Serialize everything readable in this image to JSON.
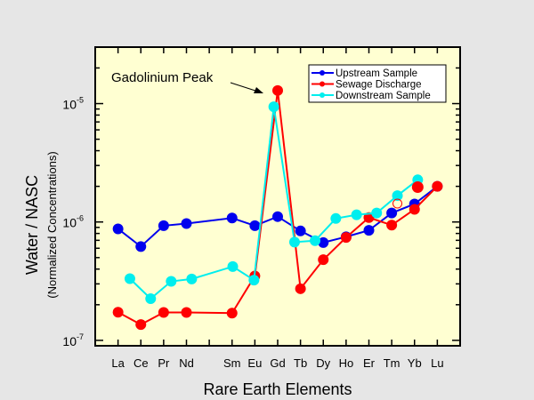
{
  "chart_data": {
    "type": "line",
    "xlabel": "Rare Earth Elements",
    "ylabel": "Water / NASC",
    "ylabel_sub": "(Normalized Concentrations)",
    "yscale": "log",
    "ylim": [
      9e-08,
      3e-05
    ],
    "xlim": [
      0,
      16
    ],
    "grid": false,
    "legend_placement": "top-right",
    "categories": [
      {
        "label": "La",
        "x": 1
      },
      {
        "label": "Ce",
        "x": 2
      },
      {
        "label": "Pr",
        "x": 3
      },
      {
        "label": "Nd",
        "x": 4
      },
      {
        "label": "",
        "x": 5
      },
      {
        "label": "Sm",
        "x": 6
      },
      {
        "label": "Eu",
        "x": 7
      },
      {
        "label": "Gd",
        "x": 8
      },
      {
        "label": "Tb",
        "x": 9
      },
      {
        "label": "Dy",
        "x": 10
      },
      {
        "label": "Ho",
        "x": 11
      },
      {
        "label": "Er",
        "x": 12
      },
      {
        "label": "Tm",
        "x": 13
      },
      {
        "label": "Yb",
        "x": 14
      },
      {
        "label": "Lu",
        "x": 15
      }
    ],
    "yticks": [
      {
        "value": 1e-07,
        "base": "10",
        "exp": "-7"
      },
      {
        "value": 1e-06,
        "base": "10",
        "exp": "-6"
      },
      {
        "value": 1e-05,
        "base": "10",
        "exp": "-5"
      }
    ],
    "series": [
      {
        "name": "Upstream Sample",
        "color": "#0000ee",
        "x": [
          1,
          2,
          3,
          4,
          6,
          7,
          8,
          9,
          10,
          11,
          12,
          13,
          14,
          15
        ],
        "y": [
          8.75e-07,
          6.2e-07,
          9.3e-07,
          9.7e-07,
          1.08e-06,
          9.3e-07,
          1.11e-06,
          8.4e-07,
          6.7e-07,
          7.5e-07,
          8.5e-07,
          1.19e-06,
          1.42e-06,
          2e-06
        ]
      },
      {
        "name": "Sewage Discharge",
        "color": "#ff0000",
        "x": [
          1,
          2,
          3,
          4,
          6,
          7,
          8,
          9,
          10,
          11,
          12,
          13,
          14,
          15
        ],
        "y": [
          1.73e-07,
          1.36e-07,
          1.72e-07,
          1.72e-07,
          1.7e-07,
          3.5e-07,
          1.29e-05,
          2.73e-07,
          4.8e-07,
          7.4e-07,
          1.09e-06,
          9.4e-07,
          1.28e-06,
          2e-06
        ]
      },
      {
        "name": "Downstream Sample",
        "color": "#00eeee",
        "x": [
          1.52,
          2.43,
          3.33,
          4.23,
          6.03,
          6.96,
          7.83,
          8.74,
          9.64,
          10.55,
          11.46,
          12.34,
          13.25,
          14.14
        ],
        "y": [
          3.32e-07,
          2.25e-07,
          3.15e-07,
          3.3e-07,
          4.2e-07,
          3.23e-07,
          9.4e-06,
          6.76e-07,
          6.95e-07,
          1.07e-06,
          1.15e-06,
          1.19e-06,
          1.67e-06,
          2.27e-06
        ]
      }
    ],
    "extra_markers": [
      {
        "x": 14.14,
        "y": 1.97e-06,
        "color": "#ff0000",
        "filled": true
      },
      {
        "x": 13.25,
        "y": 1.43e-06,
        "color": "#ff0000",
        "filled": false
      }
    ],
    "annotation": {
      "text": "Gadolinium Peak",
      "target_x": 8,
      "target_y": 1.29e-05
    }
  }
}
